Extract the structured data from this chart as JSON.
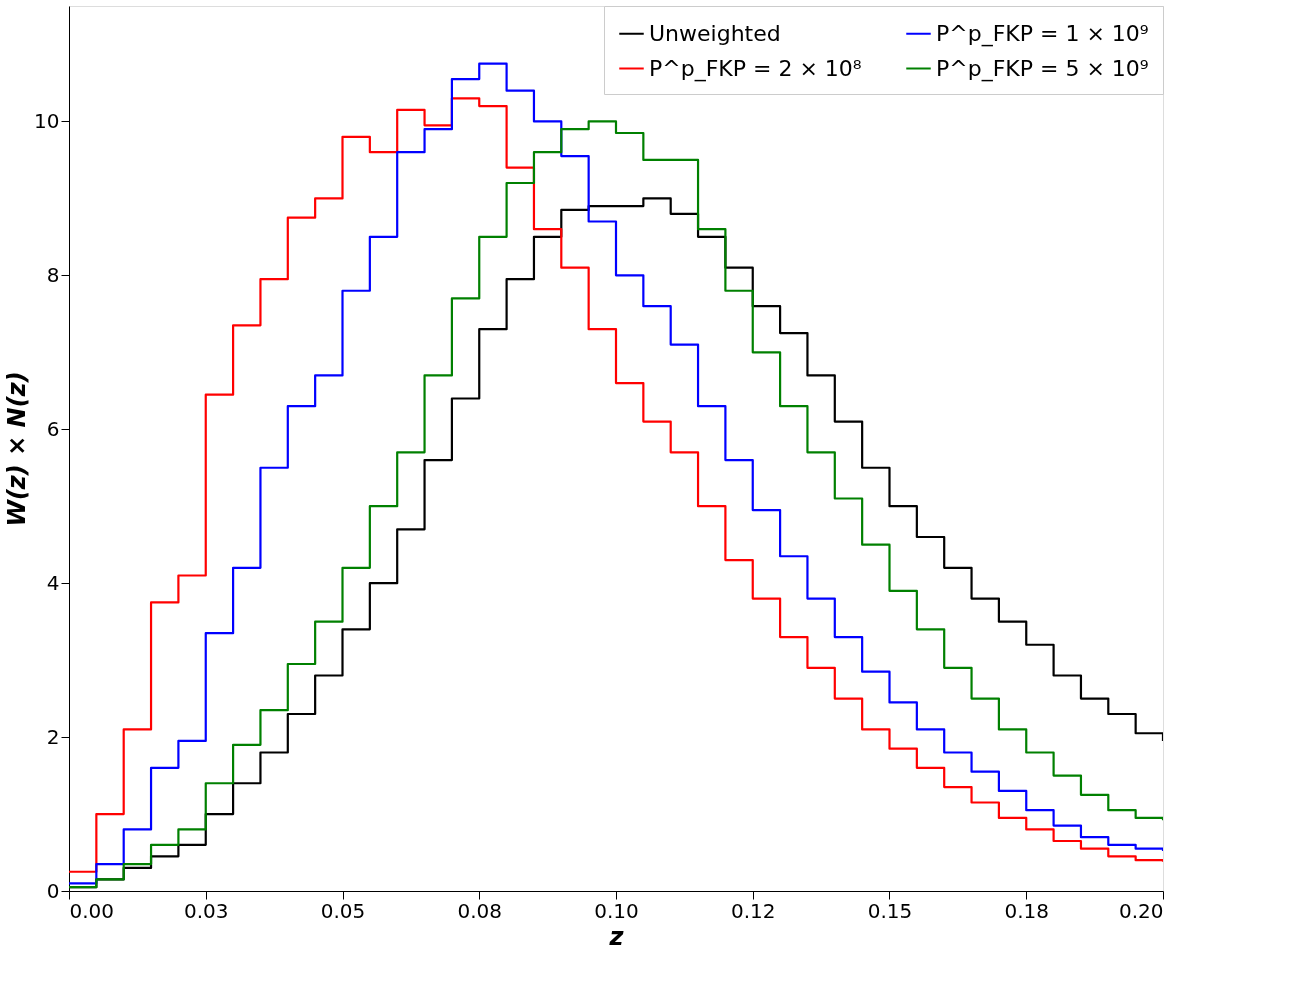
{
  "chart_data": {
    "type": "step",
    "xlabel": "z",
    "ylabel": "W(z) × N(z)",
    "x": [
      0.0,
      0.005,
      0.01,
      0.015,
      0.02,
      0.025,
      0.03,
      0.035,
      0.04,
      0.045,
      0.05,
      0.055,
      0.06,
      0.065,
      0.07,
      0.075,
      0.08,
      0.085,
      0.09,
      0.095,
      0.1,
      0.105,
      0.11,
      0.115,
      0.12,
      0.125,
      0.13,
      0.135,
      0.14,
      0.145,
      0.15,
      0.155,
      0.16,
      0.165,
      0.17,
      0.175,
      0.18,
      0.185,
      0.19,
      0.195,
      0.2
    ],
    "series": [
      {
        "name": "Unweighted",
        "color": "#000000",
        "values": [
          0.05,
          0.15,
          0.3,
          0.45,
          0.6,
          1.0,
          1.4,
          1.8,
          2.3,
          2.8,
          3.4,
          4.0,
          4.7,
          5.6,
          6.4,
          7.3,
          7.95,
          8.5,
          8.85,
          8.9,
          8.9,
          9.0,
          8.8,
          8.5,
          8.1,
          7.6,
          7.25,
          6.7,
          6.1,
          5.5,
          5.0,
          4.6,
          4.2,
          3.8,
          3.5,
          3.2,
          2.8,
          2.5,
          2.3,
          2.05,
          1.95
        ]
      },
      {
        "name": "P^p_FKP = 2 × 10⁸",
        "color": "#ff0000",
        "values": [
          0.25,
          1.0,
          2.1,
          3.75,
          4.1,
          6.45,
          7.35,
          7.95,
          8.75,
          9.0,
          9.8,
          9.6,
          10.15,
          9.95,
          10.3,
          10.2,
          9.4,
          8.6,
          8.1,
          7.3,
          6.6,
          6.1,
          5.7,
          5.0,
          4.3,
          3.8,
          3.3,
          2.9,
          2.5,
          2.1,
          1.85,
          1.6,
          1.35,
          1.15,
          0.95,
          0.8,
          0.65,
          0.55,
          0.45,
          0.4,
          0.38
        ]
      },
      {
        "name": "P^p_FKP = 1 × 10⁹",
        "color": "#0000ff",
        "values": [
          0.1,
          0.35,
          0.8,
          1.6,
          1.95,
          3.35,
          4.2,
          5.5,
          6.3,
          6.7,
          7.8,
          8.5,
          9.6,
          9.9,
          10.55,
          10.75,
          10.4,
          10.0,
          9.55,
          8.7,
          8.0,
          7.6,
          7.1,
          6.3,
          5.6,
          4.95,
          4.35,
          3.8,
          3.3,
          2.85,
          2.45,
          2.1,
          1.8,
          1.55,
          1.3,
          1.05,
          0.85,
          0.7,
          0.6,
          0.55,
          0.52
        ]
      },
      {
        "name": "P^p_FKP = 5 × 10⁹",
        "color": "#008000",
        "values": [
          0.05,
          0.15,
          0.35,
          0.6,
          0.8,
          1.4,
          1.9,
          2.35,
          2.95,
          3.5,
          4.2,
          5.0,
          5.7,
          6.7,
          7.7,
          8.5,
          9.2,
          9.6,
          9.9,
          10.0,
          9.85,
          9.5,
          9.5,
          8.6,
          7.8,
          7.0,
          6.3,
          5.7,
          5.1,
          4.5,
          3.9,
          3.4,
          2.9,
          2.5,
          2.1,
          1.8,
          1.5,
          1.25,
          1.05,
          0.95,
          0.92
        ]
      }
    ],
    "xlim": [
      0.0,
      0.2
    ],
    "ylim": [
      0,
      11.5
    ],
    "xticks": [
      {
        "value": 0.0,
        "label": "0.00"
      },
      {
        "value": 0.025,
        "label": "0.03"
      },
      {
        "value": 0.05,
        "label": "0.05"
      },
      {
        "value": 0.075,
        "label": "0.08"
      },
      {
        "value": 0.1,
        "label": "0.10"
      },
      {
        "value": 0.125,
        "label": "0.12"
      },
      {
        "value": 0.15,
        "label": "0.15"
      },
      {
        "value": 0.175,
        "label": "0.18"
      },
      {
        "value": 0.2,
        "label": "0.20"
      }
    ],
    "yticks": [
      0,
      2,
      4,
      6,
      8,
      10
    ],
    "grid": false,
    "legend": "top right",
    "marker": "none",
    "line_style": "solid"
  }
}
